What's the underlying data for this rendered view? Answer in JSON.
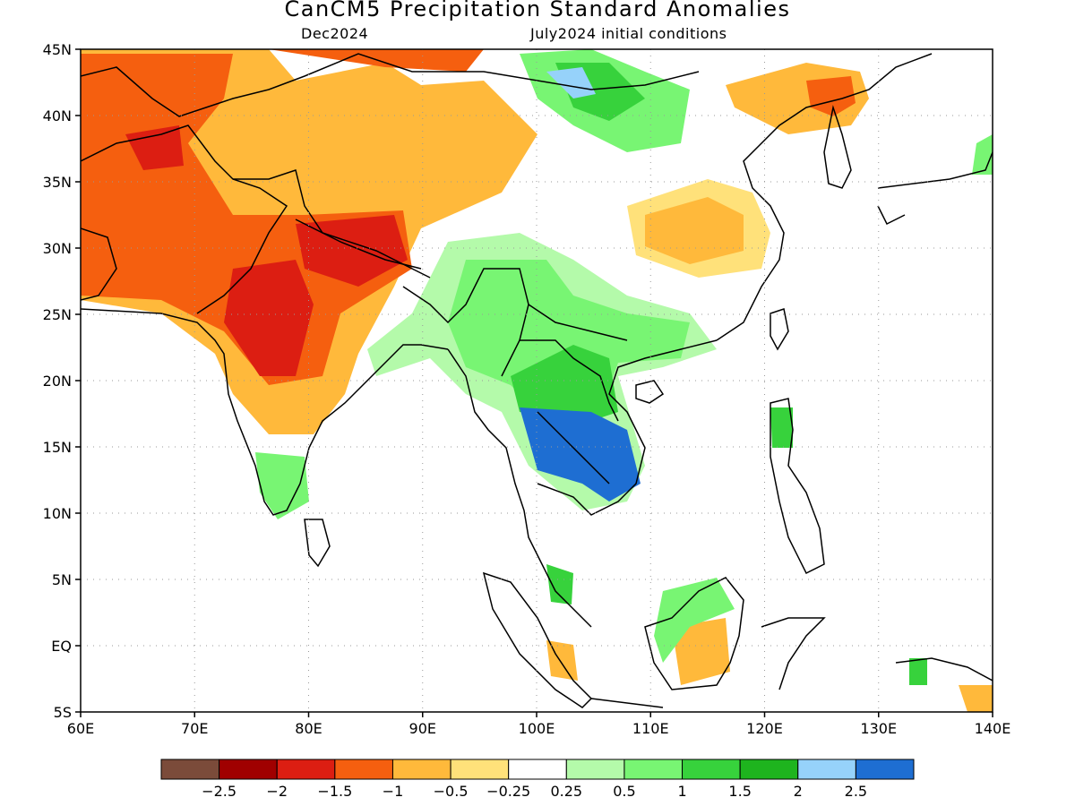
{
  "title": "CanCM5 Precipitation Standard Anomalies",
  "subtitle_left": "Dec2024",
  "subtitle_right": "July2024 initial conditions",
  "map": {
    "lon_range": [
      60,
      140
    ],
    "lat_range": [
      -5,
      45
    ],
    "lon_ticks": [
      {
        "value": 60,
        "label": "60E"
      },
      {
        "value": 70,
        "label": "70E"
      },
      {
        "value": 80,
        "label": "80E"
      },
      {
        "value": 90,
        "label": "90E"
      },
      {
        "value": 100,
        "label": "100E"
      },
      {
        "value": 110,
        "label": "110E"
      },
      {
        "value": 120,
        "label": "120E"
      },
      {
        "value": 130,
        "label": "130E"
      },
      {
        "value": 140,
        "label": "140E"
      }
    ],
    "lat_ticks": [
      {
        "value": 45,
        "label": "45N"
      },
      {
        "value": 40,
        "label": "40N"
      },
      {
        "value": 35,
        "label": "35N"
      },
      {
        "value": 30,
        "label": "30N"
      },
      {
        "value": 25,
        "label": "25N"
      },
      {
        "value": 20,
        "label": "20N"
      },
      {
        "value": 15,
        "label": "15N"
      },
      {
        "value": 10,
        "label": "10N"
      },
      {
        "value": 5,
        "label": "5N"
      },
      {
        "value": 0,
        "label": "EQ"
      },
      {
        "value": -5,
        "label": "5S"
      }
    ],
    "grid": "dotted"
  },
  "colorbar": {
    "bins": [
      {
        "color": "#7b4b3a"
      },
      {
        "color": "#a00000"
      },
      {
        "color": "#dc1e12"
      },
      {
        "color": "#f55f0f"
      },
      {
        "color": "#ffb93b"
      },
      {
        "color": "#ffe17a"
      },
      {
        "color": "#ffffff"
      },
      {
        "color": "#b4faaa"
      },
      {
        "color": "#78f573"
      },
      {
        "color": "#37d23c"
      },
      {
        "color": "#1eb41e"
      },
      {
        "color": "#96d2fa"
      },
      {
        "color": "#1e6ed2"
      }
    ],
    "labels": [
      "−2.5",
      "−2",
      "−1.5",
      "−1",
      "−0.5",
      "−0.25",
      "0.25",
      "0.5",
      "1",
      "1.5",
      "2",
      "2.5"
    ]
  }
}
